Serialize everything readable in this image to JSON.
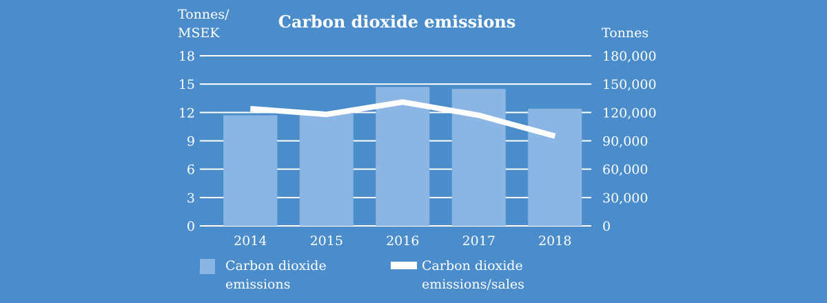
{
  "colors": {
    "background": "#4b8dcb",
    "bar": "#8bb6e4",
    "line": "#ffffff",
    "grid": "#ffffff"
  },
  "chart_data": {
    "type": "bar",
    "title": "Carbon dioxide emissions",
    "categories": [
      "2014",
      "2015",
      "2016",
      "2017",
      "2018"
    ],
    "y_left": {
      "label_lines": [
        "Tonnes/",
        "MSEK"
      ],
      "ticks": [
        "0",
        "3",
        "6",
        "9",
        "12",
        "15",
        "18"
      ],
      "ylim": [
        0,
        18
      ]
    },
    "y_right": {
      "label": "Tonnes",
      "ticks": [
        "0",
        "30,000",
        "60,000",
        "90,000",
        "120,000",
        "150,000",
        "180,000"
      ],
      "ylim": [
        0,
        180000
      ]
    },
    "grid": true,
    "series": [
      {
        "name_lines": [
          "Carbon dioxide",
          "emissions"
        ],
        "type": "bar",
        "axis": "right",
        "values": [
          117000,
          121000,
          147000,
          145000,
          124000
        ]
      },
      {
        "name_lines": [
          "Carbon dioxide",
          "emissions/sales"
        ],
        "type": "line",
        "axis": "left",
        "values": [
          12.4,
          11.8,
          13.1,
          11.7,
          9.5
        ]
      }
    ],
    "legend_position": "bottom"
  }
}
